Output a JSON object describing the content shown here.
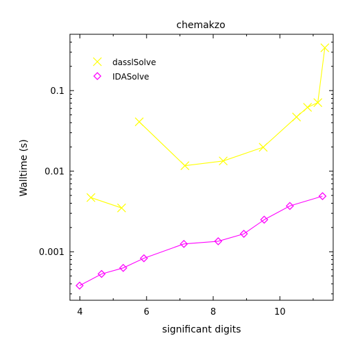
{
  "chart_data": {
    "type": "line",
    "title": "chemakzo",
    "xlabel": "significant digits",
    "ylabel": "Walltime (s)",
    "xlim": [
      3.7,
      11.6
    ],
    "ylim": [
      0.00025,
      0.5
    ],
    "yscale": "log",
    "grid": false,
    "legend_position": "top-left",
    "x_ticks": [
      {
        "value": 4,
        "label": "4"
      },
      {
        "value": 6,
        "label": "6"
      },
      {
        "value": 8,
        "label": "8"
      },
      {
        "value": 10,
        "label": "10"
      }
    ],
    "y_ticks": [
      {
        "value": 0.001,
        "label": "0.001"
      },
      {
        "value": 0.01,
        "label": "0.01"
      },
      {
        "value": 0.1,
        "label": "0.1"
      }
    ],
    "series": [
      {
        "name": "dasslSolve",
        "color": "#ffff00",
        "marker": "x-cross",
        "segments": [
          [
            [
              4.33,
              0.0047
            ],
            [
              5.25,
              0.0035
            ]
          ],
          [
            [
              5.78,
              0.041
            ],
            [
              7.15,
              0.0117
            ],
            [
              8.3,
              0.0134
            ],
            [
              9.5,
              0.0198
            ],
            [
              10.5,
              0.047
            ],
            [
              10.83,
              0.062
            ],
            [
              11.14,
              0.071
            ],
            [
              11.35,
              0.34
            ]
          ]
        ]
      },
      {
        "name": "IDASolve",
        "color": "#ff00ff",
        "marker": "diamond",
        "segments": [
          [
            [
              3.99,
              0.00038
            ],
            [
              4.65,
              0.00053
            ],
            [
              5.3,
              0.00063
            ],
            [
              5.92,
              0.00083
            ],
            [
              7.12,
              0.00125
            ],
            [
              8.15,
              0.00135
            ],
            [
              8.92,
              0.00167
            ],
            [
              9.53,
              0.0025
            ],
            [
              10.3,
              0.0037
            ],
            [
              11.28,
              0.0049
            ]
          ]
        ]
      }
    ]
  }
}
